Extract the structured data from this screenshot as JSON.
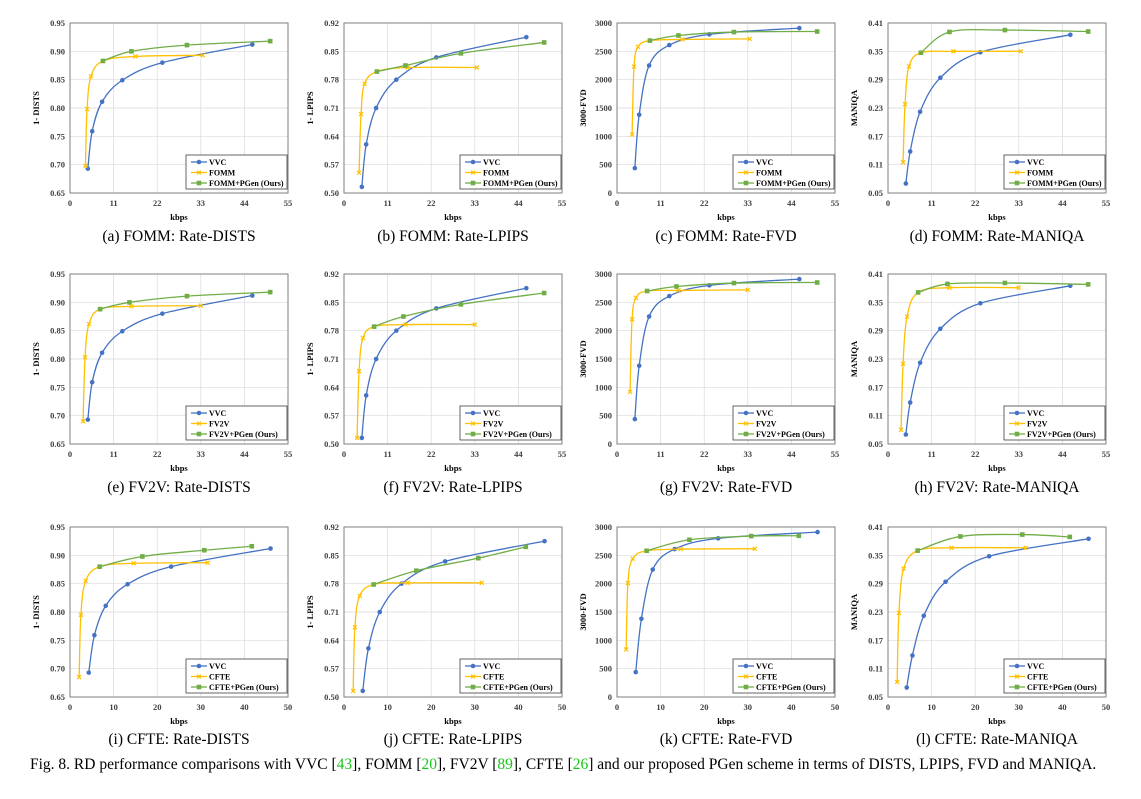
{
  "colors": {
    "vvc": "#4472C4",
    "baseline": "#FFC000",
    "pgen": "#70AD47",
    "grid": "#d9d9d9",
    "frame": "#7f7f7f",
    "ref_link": "#19c419"
  },
  "figure_caption": {
    "prefix": "Fig. 8.  RD performance comparisons with VVC [",
    "ref1": "43",
    "t1": "], FOMM [",
    "ref2": "20",
    "t2": "], FV2V [",
    "ref3": "89",
    "t3": "], CFTE [",
    "ref4": "26",
    "suffix": "] and our proposed PGen scheme in terms of DISTS, LPIPS, FVD and MANIQA."
  },
  "chart_data": [
    {
      "type": "line",
      "caption": "(a) FOMM: Rate-DISTS",
      "xlabel": "kbps",
      "ylabel": "1- DISTS",
      "xlim": [
        0,
        55
      ],
      "xticks": [
        "0",
        "11",
        "22",
        "33",
        "44",
        "55"
      ],
      "ylim": [
        0.65,
        0.95
      ],
      "yticks": [
        "0.65",
        "0.70",
        "0.75",
        "0.80",
        "0.85",
        "0.90",
        "0.95"
      ],
      "grid": true,
      "legend": "bottom-right",
      "series": [
        {
          "name": "VVC",
          "marker": "circle",
          "x": [
            4.5,
            5.6,
            8.1,
            13.2,
            23.3,
            46
          ],
          "y": [
            0.693,
            0.759,
            0.811,
            0.849,
            0.88,
            0.912
          ]
        },
        {
          "name": "FOMM",
          "marker": "x",
          "x": [
            3.9,
            4.3,
            5.3,
            8.3,
            16.5,
            33.5
          ],
          "y": [
            0.698,
            0.798,
            0.856,
            0.883,
            0.891,
            0.893
          ]
        },
        {
          "name": "FOMM+PGen (Ours)",
          "marker": "square",
          "x": [
            8.3,
            15.5,
            29.5,
            50.5
          ],
          "y": [
            0.883,
            0.9,
            0.911,
            0.918
          ]
        }
      ]
    },
    {
      "type": "line",
      "caption": "(b) FOMM: Rate-LPIPS",
      "xlabel": "kbps",
      "ylabel": "1- LPIPS",
      "xlim": [
        0,
        55
      ],
      "xticks": [
        "0",
        "11",
        "22",
        "33",
        "44",
        "55"
      ],
      "ylim": [
        0.5,
        0.92
      ],
      "yticks": [
        "0.50",
        "0.57",
        "0.64",
        "0.71",
        "0.78",
        "0.85",
        "0.92"
      ],
      "grid": true,
      "legend": "bottom-right",
      "series": [
        {
          "name": "VVC",
          "marker": "circle",
          "x": [
            4.5,
            5.6,
            8.1,
            13.2,
            23.3,
            46
          ],
          "y": [
            0.515,
            0.62,
            0.71,
            0.78,
            0.835,
            0.885
          ]
        },
        {
          "name": "FOMM",
          "marker": "x",
          "x": [
            3.8,
            4.3,
            5.2,
            8.3,
            16,
            33.5
          ],
          "y": [
            0.55,
            0.695,
            0.77,
            0.8,
            0.81,
            0.81
          ]
        },
        {
          "name": "FOMM+PGen (Ours)",
          "marker": "square",
          "x": [
            8.3,
            15.5,
            29.5,
            50.5
          ],
          "y": [
            0.8,
            0.815,
            0.845,
            0.872
          ]
        }
      ]
    },
    {
      "type": "line",
      "caption": "(c) FOMM: Rate-FVD",
      "xlabel": "kbps",
      "ylabel": "3000-FVD",
      "xlim": [
        0,
        55
      ],
      "xticks": [
        "0",
        "11",
        "22",
        "33",
        "44",
        "55"
      ],
      "ylim": [
        0,
        3000
      ],
      "yticks": [
        "0",
        "500",
        "1000",
        "1500",
        "2000",
        "2500",
        "3000"
      ],
      "grid": true,
      "legend": "bottom-right",
      "series": [
        {
          "name": "VVC",
          "marker": "circle",
          "x": [
            4.5,
            5.6,
            8.1,
            13.2,
            23.3,
            46
          ],
          "y": [
            440,
            1380,
            2250,
            2610,
            2800,
            2910
          ]
        },
        {
          "name": "FOMM",
          "marker": "x",
          "x": [
            3.8,
            4.3,
            5.3,
            8.3,
            16.5,
            33.5
          ],
          "y": [
            1030,
            2230,
            2580,
            2690,
            2710,
            2720
          ]
        },
        {
          "name": "FOMM+PGen (Ours)",
          "marker": "square",
          "x": [
            8.3,
            15.5,
            29.5,
            50.5
          ],
          "y": [
            2690,
            2780,
            2840,
            2850
          ]
        }
      ]
    },
    {
      "type": "line",
      "caption": "(d) FOMM: Rate-MANIQA",
      "xlabel": "kbps",
      "ylabel": "MANIQA",
      "xlim": [
        0,
        55
      ],
      "xticks": [
        "0",
        "11",
        "22",
        "33",
        "44",
        "55"
      ],
      "ylim": [
        0.05,
        0.41
      ],
      "yticks": [
        "0.05",
        "0.11",
        "0.17",
        "0.23",
        "0.29",
        "0.35",
        "0.41"
      ],
      "grid": true,
      "legend": "bottom-right",
      "series": [
        {
          "name": "VVC",
          "marker": "circle",
          "x": [
            4.5,
            5.6,
            8.1,
            13.2,
            23.3,
            46
          ],
          "y": [
            0.07,
            0.138,
            0.222,
            0.294,
            0.348,
            0.385
          ]
        },
        {
          "name": "FOMM",
          "marker": "x",
          "x": [
            3.8,
            4.3,
            5.3,
            8.3,
            16.5,
            33.5
          ],
          "y": [
            0.115,
            0.238,
            0.318,
            0.347,
            0.35,
            0.35
          ]
        },
        {
          "name": "FOMM+PGen (Ours)",
          "marker": "square",
          "x": [
            8.3,
            15.5,
            29.5,
            50.5
          ],
          "y": [
            0.347,
            0.391,
            0.395,
            0.392
          ]
        }
      ]
    },
    {
      "type": "line",
      "caption": "(e) FV2V: Rate-DISTS",
      "xlabel": "kbps",
      "ylabel": "1- DISTS",
      "xlim": [
        0,
        55
      ],
      "xticks": [
        "0",
        "11",
        "22",
        "33",
        "44",
        "55"
      ],
      "ylim": [
        0.65,
        0.95
      ],
      "yticks": [
        "0.65",
        "0.70",
        "0.75",
        "0.80",
        "0.85",
        "0.90",
        "0.95"
      ],
      "grid": true,
      "legend": "bottom-right",
      "series": [
        {
          "name": "VVC",
          "marker": "circle",
          "x": [
            4.5,
            5.6,
            8.1,
            13.2,
            23.3,
            46
          ],
          "y": [
            0.693,
            0.759,
            0.811,
            0.849,
            0.88,
            0.912
          ]
        },
        {
          "name": "FV2V",
          "marker": "x",
          "x": [
            3.3,
            3.8,
            4.8,
            7.6,
            15.5,
            33
          ],
          "y": [
            0.69,
            0.803,
            0.862,
            0.888,
            0.893,
            0.894
          ]
        },
        {
          "name": "FV2V+PGen (Ours)",
          "marker": "square",
          "x": [
            7.6,
            15,
            29.5,
            50.5
          ],
          "y": [
            0.888,
            0.9,
            0.911,
            0.918
          ]
        }
      ]
    },
    {
      "type": "line",
      "caption": "(f) FV2V: Rate-LPIPS",
      "xlabel": "kbps",
      "ylabel": "1- LPIPS",
      "xlim": [
        0,
        55
      ],
      "xticks": [
        "0",
        "11",
        "22",
        "33",
        "44",
        "55"
      ],
      "ylim": [
        0.5,
        0.92
      ],
      "yticks": [
        "0.50",
        "0.57",
        "0.64",
        "0.71",
        "0.78",
        "0.85",
        "0.92"
      ],
      "grid": true,
      "legend": "bottom-right",
      "series": [
        {
          "name": "VVC",
          "marker": "circle",
          "x": [
            4.5,
            5.6,
            8.1,
            13.2,
            23.3,
            46
          ],
          "y": [
            0.515,
            0.62,
            0.71,
            0.78,
            0.835,
            0.885
          ]
        },
        {
          "name": "FV2V",
          "marker": "x",
          "x": [
            3.3,
            3.8,
            4.8,
            7.6,
            15.5,
            33
          ],
          "y": [
            0.515,
            0.68,
            0.762,
            0.79,
            0.795,
            0.795
          ]
        },
        {
          "name": "FV2V+PGen (Ours)",
          "marker": "square",
          "x": [
            7.6,
            15,
            29.5,
            50.5
          ],
          "y": [
            0.79,
            0.815,
            0.845,
            0.873
          ]
        }
      ]
    },
    {
      "type": "line",
      "caption": "(g) FV2V: Rate-FVD",
      "xlabel": "kbps",
      "ylabel": "3000-FVD",
      "xlim": [
        0,
        55
      ],
      "xticks": [
        "0",
        "11",
        "22",
        "33",
        "44",
        "55"
      ],
      "ylim": [
        0,
        3000
      ],
      "yticks": [
        "0",
        "500",
        "1000",
        "1500",
        "2000",
        "2500",
        "3000"
      ],
      "grid": true,
      "legend": "bottom-right",
      "series": [
        {
          "name": "VVC",
          "marker": "circle",
          "x": [
            4.5,
            5.6,
            8.1,
            13.2,
            23.3,
            46
          ],
          "y": [
            440,
            1380,
            2250,
            2610,
            2800,
            2910
          ]
        },
        {
          "name": "FV2V",
          "marker": "x",
          "x": [
            3.3,
            3.8,
            4.8,
            7.6,
            15.5,
            33
          ],
          "y": [
            920,
            2200,
            2580,
            2700,
            2710,
            2720
          ]
        },
        {
          "name": "FV2V+PGen (Ours)",
          "marker": "square",
          "x": [
            7.6,
            15,
            29.5,
            50.5
          ],
          "y": [
            2700,
            2780,
            2840,
            2850
          ]
        }
      ]
    },
    {
      "type": "line",
      "caption": "(h) FV2V: Rate-MANIQA",
      "xlabel": "kbps",
      "ylabel": "MANIQA",
      "xlim": [
        0,
        55
      ],
      "xticks": [
        "0",
        "11",
        "22",
        "33",
        "44",
        "55"
      ],
      "ylim": [
        0.05,
        0.41
      ],
      "yticks": [
        "0.05",
        "0.11",
        "0.17",
        "0.23",
        "0.29",
        "0.35",
        "0.41"
      ],
      "grid": true,
      "legend": "bottom-right",
      "series": [
        {
          "name": "VVC",
          "marker": "circle",
          "x": [
            4.5,
            5.6,
            8.1,
            13.2,
            23.3,
            46
          ],
          "y": [
            0.07,
            0.138,
            0.222,
            0.294,
            0.348,
            0.385
          ]
        },
        {
          "name": "FV2V",
          "marker": "x",
          "x": [
            3.3,
            3.8,
            4.8,
            7.6,
            15.5,
            33
          ],
          "y": [
            0.08,
            0.22,
            0.32,
            0.371,
            0.381,
            0.381
          ]
        },
        {
          "name": "FV2V+PGen (Ours)",
          "marker": "square",
          "x": [
            7.6,
            15,
            29.5,
            50.5
          ],
          "y": [
            0.371,
            0.389,
            0.391,
            0.388
          ]
        }
      ]
    },
    {
      "type": "line",
      "caption": "(i) CFTE: Rate-DISTS",
      "xlabel": "kbps",
      "ylabel": "1- DISTS",
      "xlim": [
        0,
        50
      ],
      "xticks": [
        "0",
        "10",
        "20",
        "30",
        "40",
        "50"
      ],
      "ylim": [
        0.65,
        0.95
      ],
      "yticks": [
        "0.65",
        "0.70",
        "0.75",
        "0.80",
        "0.85",
        "0.90",
        "0.95"
      ],
      "grid": true,
      "legend": "bottom-right",
      "series": [
        {
          "name": "VVC",
          "marker": "circle",
          "x": [
            4.3,
            5.6,
            8.2,
            13.2,
            23.2,
            46
          ],
          "y": [
            0.693,
            0.759,
            0.811,
            0.849,
            0.88,
            0.912
          ]
        },
        {
          "name": "CFTE",
          "marker": "x",
          "x": [
            2.1,
            2.5,
            3.6,
            6.8,
            14.6,
            31.6
          ],
          "y": [
            0.685,
            0.795,
            0.855,
            0.88,
            0.886,
            0.887
          ]
        },
        {
          "name": "CFTE+PGen (Ours)",
          "marker": "square",
          "x": [
            6.8,
            16.6,
            30.8,
            41.7
          ],
          "y": [
            0.88,
            0.898,
            0.909,
            0.916
          ]
        }
      ]
    },
    {
      "type": "line",
      "caption": "(j) CFTE: Rate-LPIPS",
      "xlabel": "kbps",
      "ylabel": "1- LPIPS",
      "xlim": [
        0,
        50
      ],
      "xticks": [
        "0",
        "10",
        "20",
        "30",
        "40",
        "50"
      ],
      "ylim": [
        0.5,
        0.92
      ],
      "yticks": [
        "0.50",
        "0.57",
        "0.64",
        "0.71",
        "0.78",
        "0.85",
        "0.92"
      ],
      "grid": true,
      "legend": "bottom-right",
      "series": [
        {
          "name": "VVC",
          "marker": "circle",
          "x": [
            4.3,
            5.6,
            8.2,
            13.2,
            23.2,
            46
          ],
          "y": [
            0.515,
            0.62,
            0.71,
            0.78,
            0.835,
            0.885
          ]
        },
        {
          "name": "CFTE",
          "marker": "x",
          "x": [
            2.1,
            2.5,
            3.6,
            6.8,
            14.6,
            31.6
          ],
          "y": [
            0.515,
            0.672,
            0.75,
            0.778,
            0.782,
            0.782
          ]
        },
        {
          "name": "CFTE+PGen (Ours)",
          "marker": "square",
          "x": [
            6.8,
            16.6,
            30.8,
            41.7
          ],
          "y": [
            0.778,
            0.812,
            0.843,
            0.871
          ]
        }
      ]
    },
    {
      "type": "line",
      "caption": "(k) CFTE: Rate-FVD",
      "xlabel": "kbps",
      "ylabel": "3000-FVD",
      "xlim": [
        0,
        50
      ],
      "xticks": [
        "0",
        "10",
        "20",
        "30",
        "40",
        "50"
      ],
      "ylim": [
        0,
        3000
      ],
      "yticks": [
        "0",
        "500",
        "1000",
        "1500",
        "2000",
        "2500",
        "3000"
      ],
      "grid": true,
      "legend": "bottom-right",
      "series": [
        {
          "name": "VVC",
          "marker": "circle",
          "x": [
            4.3,
            5.6,
            8.2,
            13.2,
            23.2,
            46
          ],
          "y": [
            440,
            1380,
            2250,
            2610,
            2800,
            2910
          ]
        },
        {
          "name": "CFTE",
          "marker": "x",
          "x": [
            2.1,
            2.5,
            3.6,
            6.8,
            14.6,
            31.6
          ],
          "y": [
            840,
            2010,
            2440,
            2580,
            2610,
            2615
          ]
        },
        {
          "name": "CFTE+PGen (Ours)",
          "marker": "square",
          "x": [
            6.8,
            16.6,
            30.8,
            41.7
          ],
          "y": [
            2580,
            2775,
            2840,
            2845
          ]
        }
      ]
    },
    {
      "type": "line",
      "caption": "(l) CFTE: Rate-MANIQA",
      "xlabel": "kbps",
      "ylabel": "MANIQA",
      "xlim": [
        0,
        50
      ],
      "xticks": [
        "0",
        "10",
        "20",
        "30",
        "40",
        "50"
      ],
      "ylim": [
        0.05,
        0.41
      ],
      "yticks": [
        "0.05",
        "0.11",
        "0.17",
        "0.23",
        "0.29",
        "0.35",
        "0.41"
      ],
      "grid": true,
      "legend": "bottom-right",
      "series": [
        {
          "name": "VVC",
          "marker": "circle",
          "x": [
            4.3,
            5.6,
            8.2,
            13.2,
            23.2,
            46
          ],
          "y": [
            0.07,
            0.138,
            0.222,
            0.294,
            0.348,
            0.385
          ]
        },
        {
          "name": "CFTE",
          "marker": "x",
          "x": [
            2.1,
            2.5,
            3.6,
            6.8,
            14.6,
            31.6
          ],
          "y": [
            0.082,
            0.228,
            0.322,
            0.36,
            0.366,
            0.366
          ]
        },
        {
          "name": "CFTE+PGen (Ours)",
          "marker": "square",
          "x": [
            6.8,
            16.6,
            30.8,
            41.7
          ],
          "y": [
            0.36,
            0.39,
            0.394,
            0.389
          ]
        }
      ]
    }
  ]
}
